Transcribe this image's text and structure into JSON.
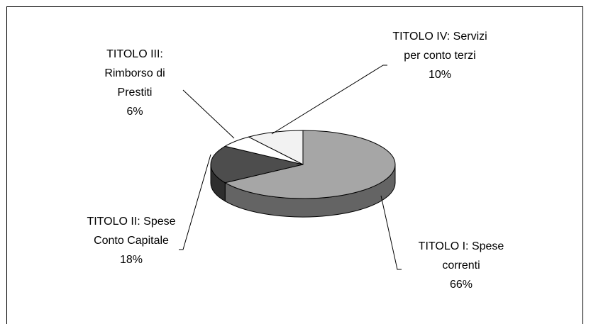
{
  "chart_data": {
    "type": "pie3d",
    "categories": [
      "TITOLO I: Spese correnti",
      "TITOLO II: Spese Conto Capitale",
      "TITOLO III: Rimborso di Prestiti",
      "TITOLO IV: Servizi per conto terzi"
    ],
    "values": [
      66,
      18,
      6,
      10
    ],
    "value_labels": [
      "66%",
      "18%",
      "6%",
      "10%"
    ],
    "colors": [
      "#a6a6a6",
      "#4d4d4d",
      "#ffffff",
      "#f2f2f2"
    ]
  }
}
